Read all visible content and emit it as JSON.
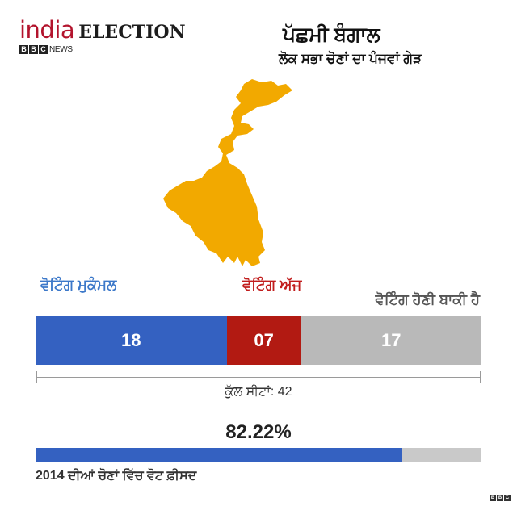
{
  "header": {
    "logo_india": "india",
    "logo_election": "ELECTION",
    "bbc_letters": [
      "B",
      "B",
      "C"
    ],
    "logo_news": "NEWS"
  },
  "region": {
    "title": "ਪੱਛਮੀ ਬੰਗਾਲ",
    "subtitle": "ਲੋਕ ਸਭਾ ਚੋਣਾਂ ਦਾ ਪੰਜਵਾਂ ਗੇੜ",
    "map_icon": "west-bengal-map",
    "map_color": "#f2a900"
  },
  "status": {
    "done_label": "ਵੋਟਿੰਗ ਮੁਕੰਮਲ",
    "today_label": "ਵੋਟਿੰਗ ਅੱਜ",
    "pending_label": "ਵੋਟਿੰਗ ਹੋਣੀ ਬਾਕੀ ਹੈ"
  },
  "seats": {
    "done": "18",
    "today": "07",
    "pending": "17",
    "total_label": "ਕੁੱਲ ਸੀਟਾਂ: 42",
    "colors": {
      "done": "#3461c1",
      "today": "#b21a12",
      "pending": "#b9b9b9"
    }
  },
  "turnout": {
    "value_text": "82.22%",
    "fraction": 0.8222,
    "label": "2014 ਦੀਆਂ ਚੋਣਾਂ ਵਿੱਚ ਵੋਟ ਫ਼ੀਸਦ"
  },
  "footer": {
    "bbc_letters": [
      "B",
      "B",
      "C"
    ]
  }
}
